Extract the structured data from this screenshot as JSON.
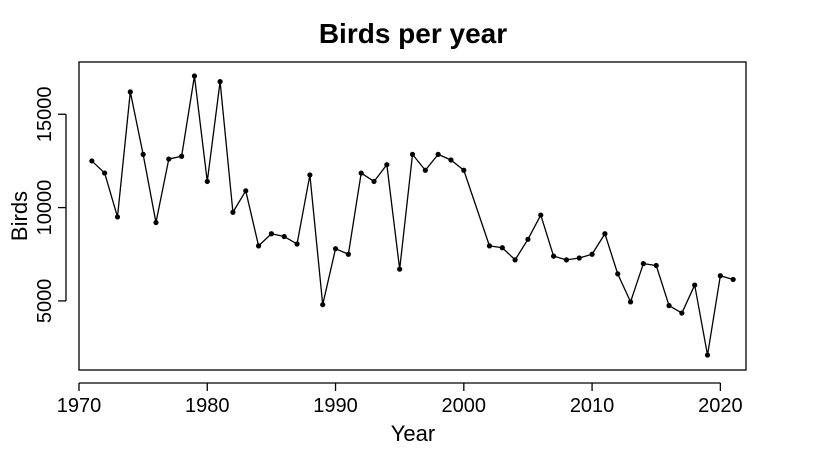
{
  "chart_data": {
    "type": "line",
    "title": "Birds per year",
    "xlabel": "Year",
    "ylabel": "Birds",
    "xlim": [
      1970,
      2022
    ],
    "ylim": [
      1300,
      17800
    ],
    "xticks": [
      1970,
      1980,
      1990,
      2000,
      2010,
      2020
    ],
    "yticks": [
      5000,
      10000,
      15000
    ],
    "grid": false,
    "markers": true,
    "color": "#000000",
    "x": [
      1971,
      1972,
      1973,
      1974,
      1975,
      1976,
      1977,
      1978,
      1979,
      1980,
      1981,
      1982,
      1983,
      1984,
      1985,
      1986,
      1987,
      1988,
      1989,
      1990,
      1991,
      1992,
      1993,
      1994,
      1995,
      1996,
      1997,
      1998,
      1999,
      2000,
      2002,
      2003,
      2004,
      2005,
      2006,
      2007,
      2008,
      2009,
      2010,
      2011,
      2012,
      2013,
      2014,
      2015,
      2016,
      2017,
      2018,
      2019,
      2020,
      2021
    ],
    "y": [
      12500,
      11850,
      9500,
      16200,
      12850,
      9200,
      12600,
      12750,
      17050,
      11400,
      16750,
      9750,
      10900,
      7950,
      8600,
      8450,
      8050,
      11750,
      4800,
      7800,
      7500,
      11850,
      11400,
      12300,
      6700,
      12850,
      12000,
      12850,
      12550,
      12000,
      7950,
      7850,
      7200,
      8300,
      9600,
      7400,
      7200,
      7300,
      7500,
      8600,
      6450,
      4950,
      7000,
      6900,
      4750,
      4350,
      5850,
      2100,
      6350,
      6150
    ]
  }
}
